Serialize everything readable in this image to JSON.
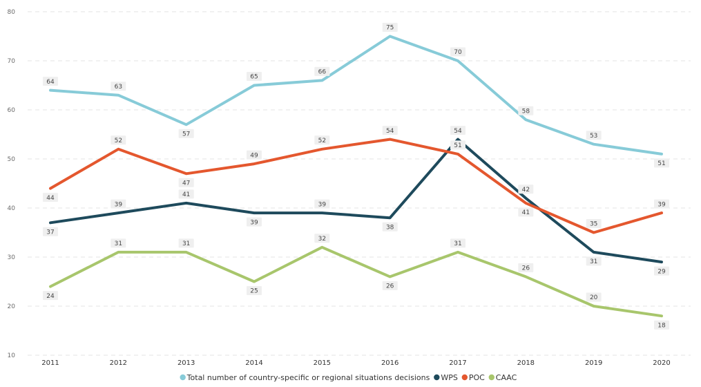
{
  "chart_data": {
    "type": "line",
    "categories": [
      "2011",
      "2012",
      "2013",
      "2014",
      "2015",
      "2016",
      "2017",
      "2018",
      "2019",
      "2020"
    ],
    "ylim": [
      10,
      80
    ],
    "yticks": [
      10,
      20,
      30,
      40,
      50,
      60,
      70,
      80
    ],
    "grid": true,
    "legend_position": "bottom",
    "series": [
      {
        "name": "Total number of country-specific or regional situations decisions",
        "color": "#87cbd8",
        "values": [
          64,
          63,
          57,
          65,
          66,
          75,
          70,
          58,
          53,
          51
        ],
        "label_pos": [
          "above",
          "above",
          "below",
          "above",
          "above",
          "above",
          "above",
          "above",
          "above",
          "below"
        ]
      },
      {
        "name": "WPS",
        "color": "#1e4a5c",
        "values": [
          37,
          39,
          41,
          39,
          39,
          38,
          54,
          42,
          31,
          29
        ],
        "label_pos": [
          "below",
          "above",
          "above",
          "below",
          "above",
          "below",
          "above",
          "above",
          "below",
          "below"
        ]
      },
      {
        "name": "POC",
        "color": "#e4572e",
        "values": [
          44,
          52,
          47,
          49,
          52,
          54,
          51,
          41,
          35,
          39
        ],
        "label_pos": [
          "below",
          "above",
          "below",
          "above",
          "above",
          "above",
          "above",
          "below",
          "above",
          "above"
        ]
      },
      {
        "name": "CAAC",
        "color": "#a8c66c",
        "values": [
          24,
          31,
          31,
          25,
          32,
          26,
          31,
          26,
          20,
          18
        ],
        "label_pos": [
          "below",
          "above",
          "above",
          "below",
          "above",
          "below",
          "above",
          "above",
          "above",
          "below"
        ]
      }
    ]
  }
}
